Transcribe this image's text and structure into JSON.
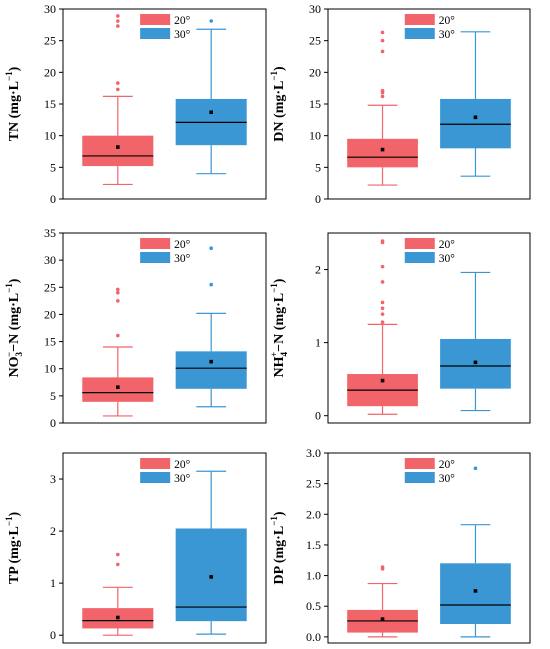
{
  "colors": {
    "temp20": "#F0646A",
    "temp30": "#3A97D4",
    "axis": "#000000",
    "point": "#000000"
  },
  "chart_data": [
    {
      "type": "box",
      "panel": "TN",
      "ylabel": "TN (mg·L⁻¹)",
      "ylabel_main": "TN",
      "ylabel_unit": "mg·L",
      "ylim": [
        0,
        30
      ],
      "yticks": [
        0,
        5,
        10,
        15,
        20,
        25,
        30
      ],
      "legend": [
        "20°",
        "30°"
      ],
      "legend_position": "top-right",
      "series": [
        {
          "name": "20°",
          "whisker_low": 2.3,
          "q1": 5.2,
          "median": 6.8,
          "q3": 10.0,
          "whisker_high": 16.2,
          "mean": 8.2,
          "outliers": [
            17.3,
            18.3,
            27.3,
            28.1,
            28.9
          ]
        },
        {
          "name": "30°",
          "whisker_low": 4.0,
          "q1": 8.5,
          "median": 12.1,
          "q3": 15.8,
          "whisker_high": 26.8,
          "mean": 13.7,
          "outliers": [
            28.1
          ]
        }
      ]
    },
    {
      "type": "box",
      "panel": "DN",
      "ylabel": "DN (mg·L⁻¹)",
      "ylabel_main": "DN",
      "ylabel_unit": "mg·L",
      "ylim": [
        0,
        30
      ],
      "yticks": [
        0,
        5,
        10,
        15,
        20,
        25,
        30
      ],
      "legend": [
        "20°",
        "30°"
      ],
      "legend_position": "top-right",
      "series": [
        {
          "name": "20°",
          "whisker_low": 2.2,
          "q1": 5.0,
          "median": 6.6,
          "q3": 9.5,
          "whisker_high": 14.8,
          "mean": 7.8,
          "outliers": [
            16.2,
            16.8,
            17.1,
            23.3,
            25.0,
            26.3
          ]
        },
        {
          "name": "30°",
          "whisker_low": 3.6,
          "q1": 8.0,
          "median": 11.8,
          "q3": 15.8,
          "whisker_high": 26.4,
          "mean": 12.9,
          "outliers": []
        }
      ]
    },
    {
      "type": "box",
      "panel": "NO3-N",
      "ylabel": "NO₃⁻–N (mg·L⁻¹)",
      "ylabel_main": "NO",
      "ylabel_sub": "3",
      "ylabel_sup": "−",
      "ylabel_rest": "−N",
      "ylabel_unit": "mg·L",
      "ylim": [
        0,
        35
      ],
      "yticks": [
        0,
        5,
        10,
        15,
        20,
        25,
        30,
        35
      ],
      "legend": [
        "20°",
        "30°"
      ],
      "legend_position": "top-right",
      "series": [
        {
          "name": "20°",
          "whisker_low": 1.3,
          "q1": 3.9,
          "median": 5.6,
          "q3": 8.4,
          "whisker_high": 14.0,
          "mean": 6.6,
          "outliers": [
            16.1,
            22.5,
            24.0,
            24.6
          ]
        },
        {
          "name": "30°",
          "whisker_low": 3.0,
          "q1": 6.3,
          "median": 10.1,
          "q3": 13.2,
          "whisker_high": 20.2,
          "mean": 11.3,
          "outliers": [
            25.5,
            32.2
          ]
        }
      ]
    },
    {
      "type": "box",
      "panel": "NH4-N",
      "ylabel": "NH₄⁺–N (mg·L⁻¹)",
      "ylabel_main": "NH",
      "ylabel_sub": "4",
      "ylabel_sup": "+",
      "ylabel_rest": "−N",
      "ylabel_unit": "mg·L",
      "ylim": [
        -0.1,
        2.5
      ],
      "yticks": [
        0,
        1,
        2
      ],
      "legend": [
        "20°",
        "30°"
      ],
      "legend_position": "top-right",
      "series": [
        {
          "name": "20°",
          "whisker_low": 0.02,
          "q1": 0.13,
          "median": 0.35,
          "q3": 0.57,
          "whisker_high": 1.25,
          "mean": 0.48,
          "outliers": [
            1.28,
            1.39,
            1.47,
            1.55,
            1.83,
            2.04,
            2.37,
            2.39
          ]
        },
        {
          "name": "30°",
          "whisker_low": 0.07,
          "q1": 0.37,
          "median": 0.68,
          "q3": 1.05,
          "whisker_high": 1.96,
          "mean": 0.73,
          "outliers": []
        }
      ]
    },
    {
      "type": "box",
      "panel": "TP",
      "ylabel": "TP (mg·L⁻¹)",
      "ylabel_main": "TP",
      "ylabel_unit": "mg·L",
      "ylim": [
        -0.15,
        3.5
      ],
      "yticks": [
        0,
        1,
        2,
        3
      ],
      "legend": [
        "20°",
        "30°"
      ],
      "legend_position": "top-right",
      "series": [
        {
          "name": "20°",
          "whisker_low": 0.0,
          "q1": 0.13,
          "median": 0.28,
          "q3": 0.52,
          "whisker_high": 0.92,
          "mean": 0.34,
          "outliers": [
            1.36,
            1.55
          ]
        },
        {
          "name": "30°",
          "whisker_low": 0.02,
          "q1": 0.27,
          "median": 0.54,
          "q3": 2.05,
          "whisker_high": 3.15,
          "mean": 1.12,
          "outliers": []
        }
      ]
    },
    {
      "type": "box",
      "panel": "DP",
      "ylabel": "DP (mg·L⁻¹)",
      "ylabel_main": "DP",
      "ylabel_unit": "mg·L",
      "ylim": [
        -0.1,
        3.0
      ],
      "yticks": [
        0.0,
        0.5,
        1.0,
        1.5,
        2.0,
        2.5,
        3.0
      ],
      "legend": [
        "20°",
        "30°"
      ],
      "legend_position": "top-right",
      "series": [
        {
          "name": "20°",
          "whisker_low": 0.0,
          "q1": 0.07,
          "median": 0.26,
          "q3": 0.44,
          "whisker_high": 0.87,
          "mean": 0.29,
          "outliers": [
            1.11,
            1.14
          ]
        },
        {
          "name": "30°",
          "whisker_low": 0.0,
          "q1": 0.21,
          "median": 0.52,
          "q3": 1.2,
          "whisker_high": 1.83,
          "mean": 0.75,
          "outliers": [
            2.75
          ]
        }
      ]
    }
  ]
}
